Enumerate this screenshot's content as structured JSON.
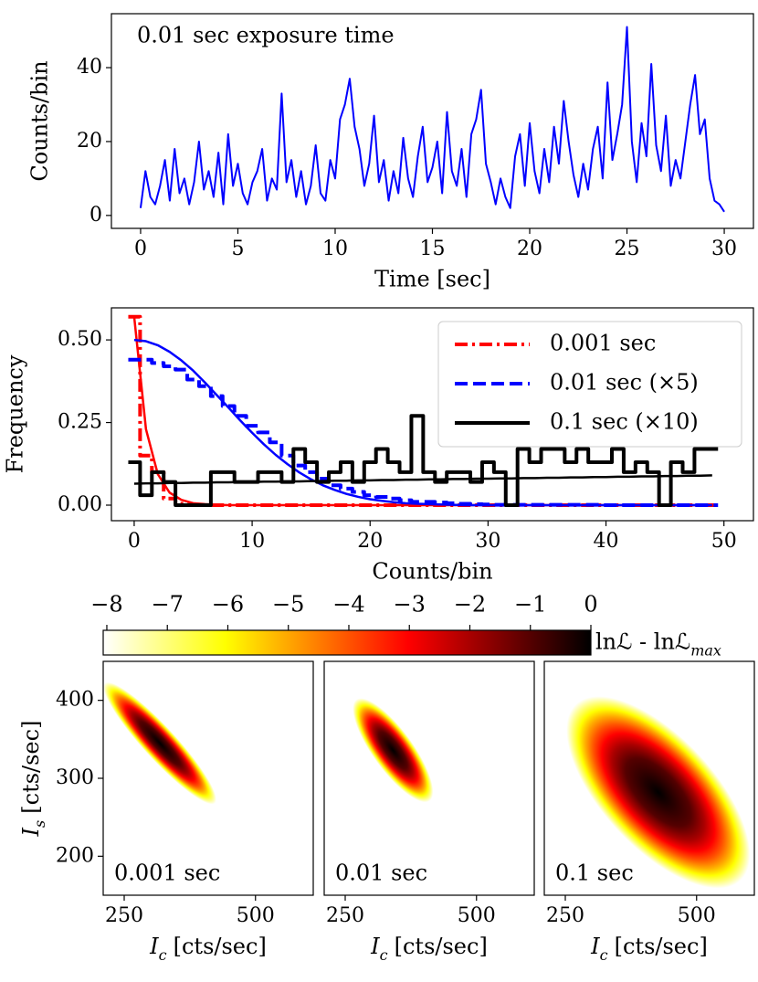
{
  "chart_data": [
    {
      "type": "line",
      "annotation": "0.01 sec exposure time",
      "xlabel": "Time [sec]",
      "ylabel": "Counts/bin",
      "color": "#0000ff",
      "linewidth": 2,
      "xlim": [
        -1.5,
        31.5
      ],
      "ylim": [
        -3.5,
        54.6
      ],
      "xticks": [
        0,
        5,
        10,
        15,
        20,
        25,
        30
      ],
      "yticks": [
        0,
        20,
        40
      ],
      "x": [
        0,
        0.25,
        0.5,
        0.75,
        1,
        1.25,
        1.5,
        1.75,
        2,
        2.25,
        2.5,
        2.75,
        3,
        3.25,
        3.5,
        3.75,
        4,
        4.25,
        4.5,
        4.75,
        5,
        5.25,
        5.5,
        5.75,
        6,
        6.25,
        6.5,
        6.75,
        7,
        7.25,
        7.5,
        7.75,
        8,
        8.25,
        8.5,
        8.75,
        9,
        9.25,
        9.5,
        9.75,
        10,
        10.25,
        10.5,
        10.75,
        11,
        11.25,
        11.5,
        11.75,
        12,
        12.25,
        12.5,
        12.75,
        13,
        13.25,
        13.5,
        13.75,
        14,
        14.25,
        14.5,
        14.75,
        15,
        15.25,
        15.5,
        15.75,
        16,
        16.25,
        16.5,
        16.75,
        17,
        17.25,
        17.5,
        17.75,
        18,
        18.25,
        18.5,
        18.75,
        19,
        19.25,
        19.5,
        19.75,
        20,
        20.25,
        20.5,
        20.75,
        21,
        21.25,
        21.5,
        21.75,
        22,
        22.25,
        22.5,
        22.75,
        23,
        23.25,
        23.5,
        23.75,
        24,
        24.25,
        24.5,
        24.75,
        25,
        25.25,
        25.5,
        25.75,
        26,
        26.25,
        26.5,
        26.75,
        27,
        27.25,
        27.5,
        27.75,
        28,
        28.25,
        28.5,
        28.75,
        29,
        29.25,
        29.5,
        29.75,
        30
      ],
      "values": [
        2,
        12,
        5,
        3,
        8,
        15,
        4,
        18,
        6,
        10,
        3,
        9,
        20,
        7,
        12,
        5,
        17,
        3,
        22,
        8,
        14,
        6,
        3,
        9,
        12,
        18,
        4,
        10,
        7,
        33,
        9,
        15,
        5,
        12,
        3,
        8,
        19,
        6,
        4,
        15,
        10,
        26,
        30,
        37,
        24,
        18,
        8,
        14,
        27,
        9,
        15,
        4,
        12,
        6,
        21,
        10,
        5,
        16,
        24,
        9,
        13,
        20,
        6,
        28,
        12,
        8,
        18,
        5,
        22,
        26,
        34,
        14,
        9,
        3,
        10,
        5,
        2,
        16,
        22,
        8,
        25,
        12,
        6,
        18,
        9,
        24,
        14,
        31,
        20,
        11,
        5,
        14,
        7,
        18,
        24,
        10,
        36,
        15,
        22,
        30,
        51,
        20,
        9,
        25,
        16,
        41,
        19,
        12,
        27,
        8,
        15,
        10,
        20,
        30,
        38,
        22,
        26,
        10,
        4,
        3,
        1
      ]
    },
    {
      "type": "line",
      "xlabel": "Counts/bin",
      "ylabel": "Frequency",
      "legend": "upper right",
      "xlim": [
        -1.93,
        52.5
      ],
      "ylim": [
        -0.047,
        0.597
      ],
      "xticks": [
        0,
        10,
        20,
        30,
        40,
        50
      ],
      "yticks": [
        {
          "value": 0,
          "label": "0.00"
        },
        0.25,
        {
          "value": 0.5,
          "label": "0.50"
        }
      ],
      "x": [
        0,
        1,
        2,
        3,
        4,
        5,
        6,
        7,
        8,
        9,
        10,
        11,
        12,
        13,
        14,
        15,
        16,
        17,
        18,
        19,
        20,
        21,
        22,
        23,
        24,
        25,
        26,
        27,
        28,
        29,
        30,
        31,
        32,
        33,
        34,
        35,
        36,
        37,
        38,
        39,
        40,
        41,
        42,
        43,
        44,
        45,
        46,
        47,
        48,
        49
      ],
      "series": [
        {
          "name": "0.001 sec",
          "color": "#ff0000",
          "dash": "dashdot",
          "drawstyle": "steps-mid",
          "linewidth": 4,
          "values": [
            0.57,
            0.15,
            0.1,
            0.02,
            0.004,
            0.001,
            0,
            0,
            0,
            0,
            0,
            0,
            0,
            0,
            0,
            0,
            0,
            0,
            0,
            0,
            0,
            0,
            0,
            0,
            0,
            0,
            0,
            0,
            0,
            0,
            0,
            0,
            0,
            0,
            0,
            0,
            0,
            0,
            0,
            0,
            0,
            0,
            0,
            0,
            0,
            0,
            0,
            0,
            0,
            0
          ]
        },
        {
          "color": "#ff0000",
          "dash": "solid",
          "drawstyle": "default",
          "linewidth": 2.5,
          "values": [
            0.57,
            0.23,
            0.094,
            0.038,
            0.016,
            0.006,
            0.003,
            0.001,
            0,
            0,
            0,
            0,
            0,
            0,
            0,
            0,
            0,
            0,
            0,
            0,
            0,
            0,
            0,
            0,
            0,
            0,
            0,
            0,
            0,
            0,
            0,
            0,
            0,
            0,
            0,
            0,
            0,
            0,
            0,
            0,
            0,
            0,
            0,
            0,
            0,
            0,
            0,
            0,
            0,
            0
          ]
        },
        {
          "name": "0.01 sec (×5)",
          "color": "#0000ff",
          "dash": "dashed",
          "drawstyle": "steps-mid",
          "linewidth": 4,
          "values": [
            0.44,
            0.44,
            0.43,
            0.42,
            0.41,
            0.38,
            0.36,
            0.33,
            0.3,
            0.27,
            0.24,
            0.22,
            0.19,
            0.15,
            0.12,
            0.1,
            0.08,
            0.06,
            0.05,
            0.04,
            0.03,
            0.025,
            0.02,
            0.015,
            0.01,
            0.01,
            0.008,
            0.006,
            0.004,
            0.003,
            0.002,
            0.001,
            0.001,
            0.001,
            0.001,
            0.001,
            0.001,
            0.001,
            0.001,
            0.001,
            0,
            0,
            0,
            0,
            0,
            0,
            0,
            0,
            0,
            0
          ]
        },
        {
          "color": "#0000ff",
          "dash": "solid",
          "drawstyle": "default",
          "linewidth": 2.5,
          "values": [
            0.5,
            0.496,
            0.484,
            0.464,
            0.438,
            0.407,
            0.371,
            0.333,
            0.295,
            0.256,
            0.219,
            0.184,
            0.152,
            0.124,
            0.099,
            0.078,
            0.06,
            0.046,
            0.034,
            0.025,
            0.018,
            0.013,
            0.009,
            0.006,
            0.004,
            0.003,
            0.002,
            0.001,
            0,
            0,
            0,
            0,
            0,
            0,
            0,
            0,
            0,
            0,
            0,
            0,
            0,
            0,
            0,
            0,
            0,
            0,
            0,
            0,
            0,
            0
          ]
        },
        {
          "name": "0.1 sec (×10)",
          "color": "#000000",
          "dash": "solid",
          "drawstyle": "steps-mid",
          "linewidth": 4,
          "values": [
            0.13,
            0.03,
            0.1,
            0.07,
            0,
            0,
            0,
            0.1,
            0.1,
            0.07,
            0.07,
            0.1,
            0.1,
            0.07,
            0.17,
            0.13,
            0.07,
            0.1,
            0.13,
            0.07,
            0.13,
            0.17,
            0.13,
            0.1,
            0.27,
            0.1,
            0.07,
            0.1,
            0.1,
            0.07,
            0.13,
            0.1,
            0,
            0.17,
            0.13,
            0.17,
            0.17,
            0.13,
            0.17,
            0.13,
            0.13,
            0.17,
            0.1,
            0.13,
            0.1,
            0,
            0.13,
            0.1,
            0.17,
            0.17
          ]
        },
        {
          "color": "#000000",
          "dash": "solid",
          "drawstyle": "default",
          "linewidth": 2.5,
          "values": [
            0.065,
            0.066,
            0.066,
            0.067,
            0.067,
            0.068,
            0.068,
            0.069,
            0.069,
            0.07,
            0.07,
            0.071,
            0.071,
            0.072,
            0.072,
            0.073,
            0.073,
            0.074,
            0.074,
            0.075,
            0.075,
            0.076,
            0.076,
            0.077,
            0.077,
            0.078,
            0.078,
            0.079,
            0.079,
            0.08,
            0.08,
            0.081,
            0.081,
            0.082,
            0.082,
            0.083,
            0.083,
            0.084,
            0.084,
            0.085,
            0.085,
            0.086,
            0.086,
            0.087,
            0.087,
            0.088,
            0.088,
            0.089,
            0.089,
            0.09
          ]
        }
      ]
    },
    {
      "type": "colorbar",
      "label": "lnℒ - lnℒ",
      "label_sub": "max",
      "lim": [
        -8.06,
        0
      ],
      "ticks": [
        {
          "value": -8,
          "label": "−8"
        },
        {
          "value": -7,
          "label": "−7"
        },
        {
          "value": -6,
          "label": "−6"
        },
        {
          "value": -5,
          "label": "−5"
        },
        {
          "value": -4,
          "label": "−4"
        },
        {
          "value": -3,
          "label": "−3"
        },
        {
          "value": -2,
          "label": "−2"
        },
        {
          "value": -1,
          "label": "−1"
        },
        0
      ],
      "colormap": [
        "#ffffff",
        "#ffff80",
        "#ffff00",
        "#ffaa00",
        "#ff5500",
        "#ff0000",
        "#aa0000",
        "#550000",
        "#000000"
      ]
    },
    {
      "type": "likelihood_map",
      "label": "0.001 sec",
      "xlabel_symbol": "I",
      "xlabel_sub": "c",
      "xlabel_unit": "[cts/sec]",
      "ylabel_symbol": "I",
      "ylabel_sub": "s",
      "ylabel_unit": "[cts/sec]",
      "xlim": [
        210,
        610
      ],
      "ylim": [
        150,
        450
      ],
      "xticks": [
        250,
        500
      ],
      "yticks": [
        200,
        300,
        400
      ],
      "center": [
        318,
        345
      ],
      "major": [
        -105,
        77
      ],
      "minor": [
        23,
        14
      ]
    },
    {
      "type": "likelihood_map",
      "label": "0.01 sec",
      "xlabel_symbol": "I",
      "xlabel_sub": "c",
      "xlabel_unit": "[cts/sec]",
      "xlim": [
        210,
        610
      ],
      "ylim": [
        150,
        450
      ],
      "xticks": [
        250,
        500
      ],
      "center": [
        341,
        336
      ],
      "major": [
        -70,
        65
      ],
      "minor": [
        31,
        15
      ]
    },
    {
      "type": "likelihood_map",
      "label": "0.1 sec",
      "xlabel_symbol": "I",
      "xlabel_sub": "c",
      "xlabel_unit": "[cts/sec]",
      "xlim": [
        210,
        610
      ],
      "ylim": [
        150,
        450
      ],
      "xticks": [
        250,
        500
      ],
      "center": [
        427,
        282
      ],
      "major": [
        -157,
        113
      ],
      "minor": [
        77,
        49
      ]
    }
  ]
}
